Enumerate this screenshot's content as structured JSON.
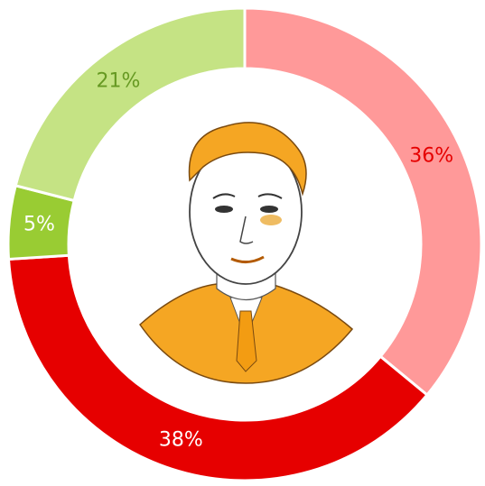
{
  "chart_data": {
    "type": "donut",
    "values": [
      36,
      38,
      5,
      21
    ],
    "value_labels": [
      "36%",
      "38%",
      "5%",
      "21%"
    ],
    "colors": [
      "#ff9999",
      "#e60000",
      "#99cc33",
      "#c5e384"
    ],
    "label_colors": [
      "#e60000",
      "#ffffff",
      "#ffffff",
      "#669922"
    ]
  }
}
